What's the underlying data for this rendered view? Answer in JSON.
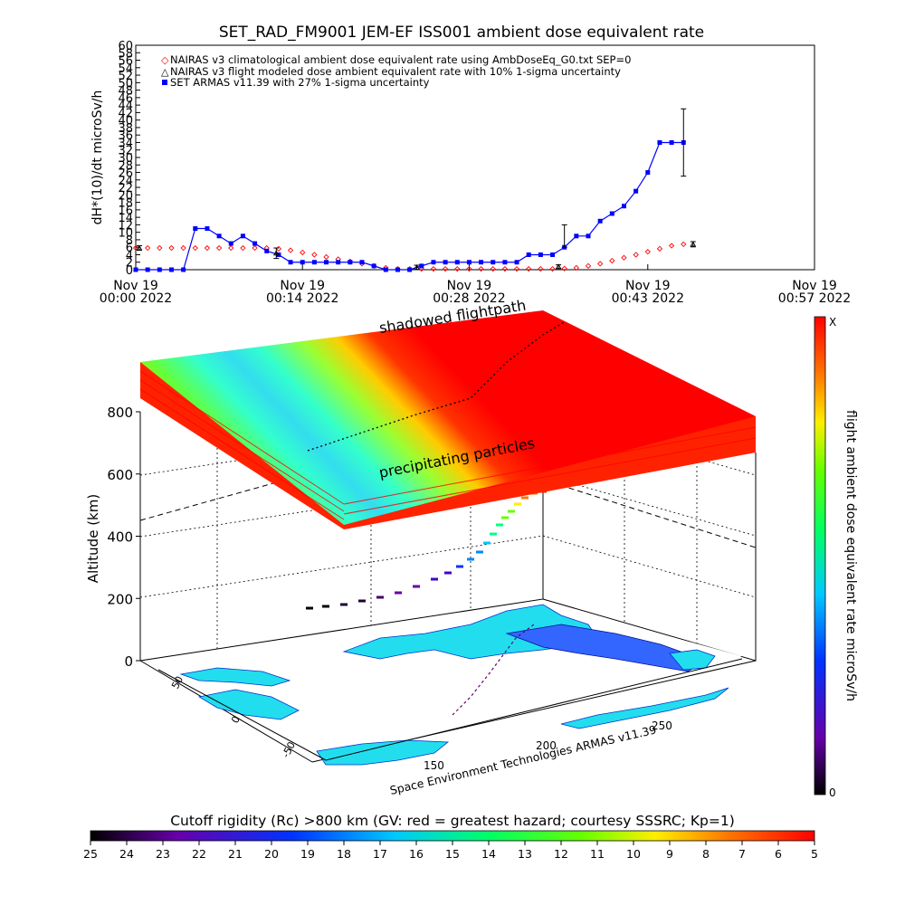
{
  "colors": {
    "series_armas": "#0000ff",
    "series_climatological": "#ff0000",
    "series_flight_modeled": "#000000",
    "slab_edge": "#ff0000",
    "slab_mid": "#00ff66",
    "slab_center": "#33ddee",
    "ocean": "#ffffff",
    "land": "#22ddee"
  },
  "icons": [
    "diamond-marker-icon",
    "triangle-marker-icon",
    "filled-square-marker-icon"
  ],
  "chart_data": [
    {
      "type": "line",
      "title": "SET_RAD_FM9001  JEM-EF ISS001 ambient dose equivalent rate",
      "ylabel": "dH*(10)/dt microSv/h",
      "xlabel": "",
      "ylim": [
        0,
        60
      ],
      "xlim": [
        0,
        57
      ],
      "grid": false,
      "legend_position": "top-left",
      "y_ticks": [
        "0",
        "2",
        "4",
        "6",
        "8",
        "10",
        "12",
        "14",
        "16",
        "18",
        "20",
        "22",
        "24",
        "26",
        "28",
        "30",
        "32",
        "34",
        "36",
        "38",
        "40",
        "42",
        "44",
        "46",
        "48",
        "50",
        "52",
        "54",
        "56",
        "58",
        "60"
      ],
      "x_ticks": [
        {
          "x": 0,
          "line1": "Nov 19",
          "line2": "00:00 2022"
        },
        {
          "x": 14,
          "line1": "Nov 19",
          "line2": "00:14 2022"
        },
        {
          "x": 28,
          "line1": "Nov 19",
          "line2": "00:28 2022"
        },
        {
          "x": 43,
          "line1": "Nov 19",
          "line2": "00:43 2022"
        },
        {
          "x": 57,
          "line1": "Nov 19",
          "line2": "00:57 2022"
        }
      ],
      "series": [
        {
          "name": "NAIRAS v3 climatological ambient dose equivalent rate using AmbDoseEq_G0.txt SEP=0",
          "marker": "diamond",
          "x": [
            0,
            1,
            2,
            3,
            4,
            5,
            6,
            7,
            8,
            9,
            10,
            11,
            12,
            13,
            14,
            15,
            16,
            17,
            18,
            19,
            20,
            21,
            22,
            23,
            24,
            25,
            26,
            27,
            28,
            29,
            30,
            31,
            32,
            33,
            34,
            35,
            36,
            37,
            38,
            39,
            40,
            41,
            42,
            43,
            44,
            45,
            46
          ],
          "values": [
            5.8,
            5.8,
            5.8,
            5.8,
            5.8,
            5.8,
            5.8,
            5.8,
            5.8,
            5.8,
            5.8,
            5.8,
            5.6,
            5.2,
            4.6,
            4.0,
            3.4,
            2.8,
            2.2,
            1.6,
            1.0,
            0.5,
            0.2,
            0.2,
            0.2,
            0.2,
            0.2,
            0.2,
            0.2,
            0.2,
            0.2,
            0.2,
            0.2,
            0.2,
            0.2,
            0.2,
            0.3,
            0.5,
            1.0,
            1.6,
            2.4,
            3.2,
            4.0,
            4.8,
            5.6,
            6.4,
            6.8
          ]
        },
        {
          "name": "NAIRAS v3 flight modeled dose ambient equivalent rate with 10% 1-sigma uncertainty",
          "marker": "triangle",
          "points": [
            {
              "x": 0.3,
              "y": 5.8,
              "err": 0.6
            },
            {
              "x": 11.8,
              "y": 4.4,
              "err": 1.4
            },
            {
              "x": 23.6,
              "y": 0.6,
              "err": 0.6
            },
            {
              "x": 35.5,
              "y": 0.8,
              "err": 0.5
            },
            {
              "x": 46.8,
              "y": 6.8,
              "err": 0.7
            }
          ]
        },
        {
          "name": "SET ARMAS v11.39 with 27% 1-sigma uncertainty",
          "marker": "filled-square",
          "x": [
            0,
            1,
            2,
            3,
            4,
            5,
            6,
            7,
            8,
            9,
            10,
            11,
            12,
            13,
            14,
            15,
            16,
            17,
            18,
            19,
            20,
            21,
            22,
            23,
            24,
            25,
            26,
            27,
            28,
            29,
            30,
            31,
            32,
            33,
            34,
            35,
            36,
            37,
            38,
            39,
            40,
            41,
            42,
            43,
            44,
            45,
            46
          ],
          "values": [
            0,
            0,
            0,
            0,
            0,
            11,
            11,
            9,
            7,
            9,
            7,
            5,
            4,
            2,
            2,
            2,
            2,
            2,
            2,
            2,
            1,
            0,
            0,
            0,
            1,
            2,
            2,
            2,
            2,
            2,
            2,
            2,
            2,
            4,
            4,
            4,
            6,
            9,
            9,
            13,
            15,
            17,
            21,
            26,
            34,
            34,
            34
          ],
          "error_bar": {
            "x": 46,
            "y": 34,
            "err": 9
          },
          "extra_points": [
            {
              "x": 36,
              "y": 9,
              "err": 3
            }
          ]
        }
      ]
    },
    {
      "type": "heatmap",
      "title": "",
      "ylabel": "Altitude (km)",
      "z_ticks": [
        "0",
        "200",
        "400",
        "600",
        "800"
      ],
      "lat_ticks": [
        "50",
        "0",
        "-50"
      ],
      "lon_ticks": [
        "150",
        "200",
        "250"
      ],
      "slab_label_top": "shadowed flightpath",
      "slab_label_front": "precipitating particles",
      "credit": "Space Environment Technologies ARMAS v11.39",
      "colorbar": {
        "label": "flight ambient dose equivalent rate microSv/h",
        "top_label": "X",
        "bottom_label": "0"
      }
    },
    {
      "type": "heatmap",
      "title": "Cutoff rigidity (Rc) >800 km (GV: red = greatest hazard; courtesy SSSRC; Kp=1)",
      "colorbar_ticks": [
        "25",
        "24",
        "23",
        "22",
        "21",
        "20",
        "19",
        "18",
        "17",
        "16",
        "15",
        "14",
        "13",
        "12",
        "11",
        "10",
        "9",
        "8",
        "7",
        "6",
        "5"
      ]
    }
  ]
}
